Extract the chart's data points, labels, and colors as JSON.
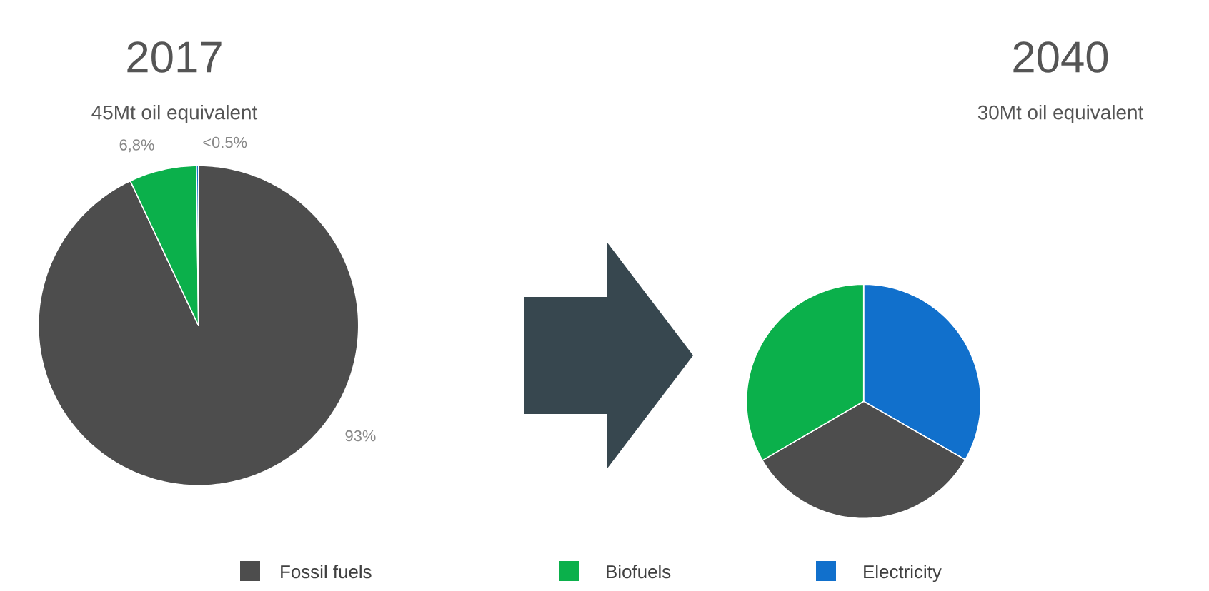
{
  "chart_data": [
    {
      "type": "pie",
      "title": "2017",
      "subtitle": "45Mt oil equivalent",
      "categories": [
        "Fossil fuels",
        "Biofuels",
        "Electricity"
      ],
      "values": [
        93,
        6.8,
        0.2
      ],
      "colors": [
        "#4d4d4d",
        "#0bb04b",
        "#1170cc"
      ],
      "value_labels": [
        "93%",
        "6,8%",
        "<0.5%"
      ],
      "legend": "bottom"
    },
    {
      "type": "pie",
      "title": "2040",
      "subtitle": "30Mt oil equivalent",
      "categories": [
        null,
        null,
        null
      ],
      "values": [
        33.3,
        33.3,
        33.4
      ],
      "colors": [
        "#1170cc",
        "#4d4d4d",
        "#0bb04b"
      ]
    }
  ]
}
